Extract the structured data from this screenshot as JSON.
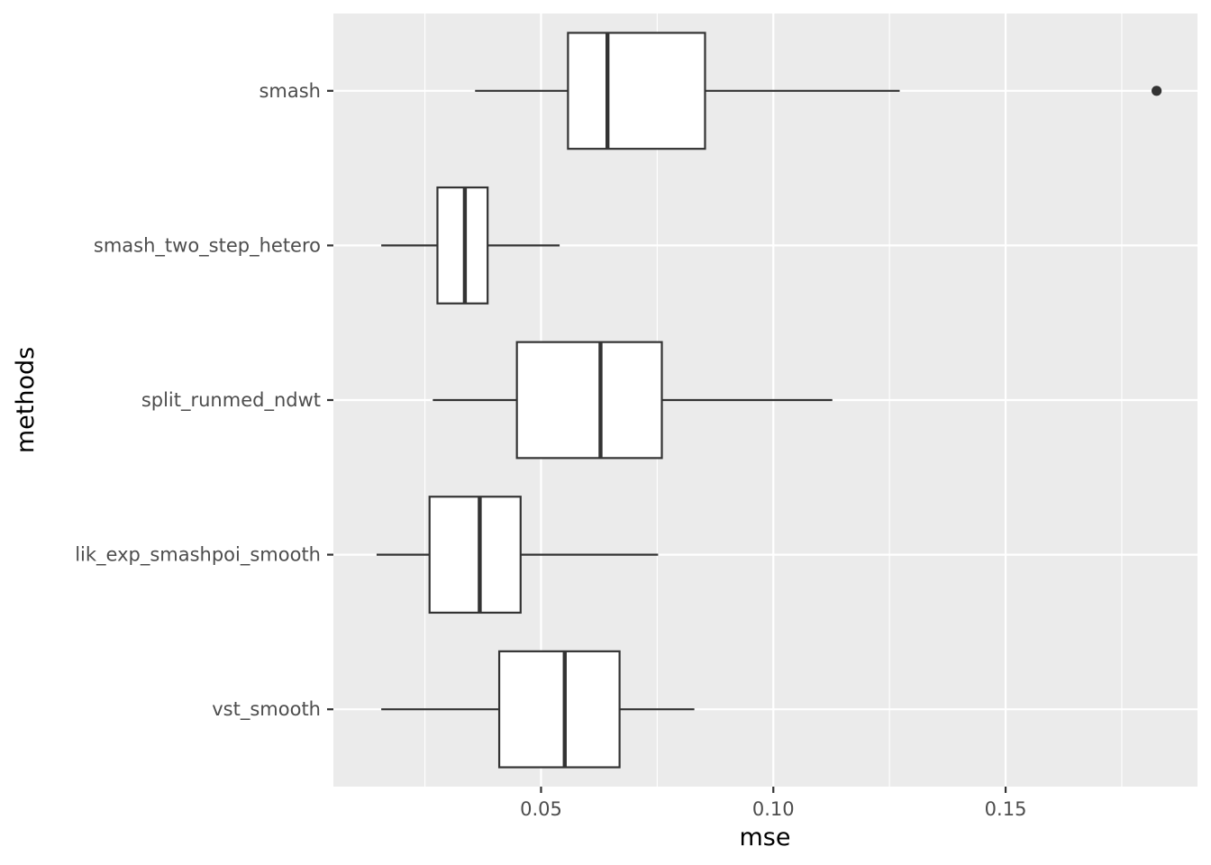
{
  "chart_data": {
    "type": "boxplot",
    "orientation": "horizontal",
    "xlabel": "mse",
    "ylabel": "methods",
    "xlim": [
      0.0053,
      0.1913
    ],
    "xticks": [
      0.05,
      0.1,
      0.15
    ],
    "xtick_labels": [
      "0.05",
      "0.10",
      "0.15"
    ],
    "grid": true,
    "colors": {
      "panel": "#ebebeb",
      "grid_major": "#ffffff",
      "box_fill": "#ffffff",
      "box_stroke": "#333333",
      "tick_text": "#4d4d4d"
    },
    "series": [
      {
        "name": "smash",
        "min": 0.0358,
        "q1": 0.0558,
        "median": 0.0643,
        "q3": 0.0853,
        "max": 0.1272,
        "outliers": [
          0.1825
        ]
      },
      {
        "name": "smash_two_step_hetero",
        "min": 0.0156,
        "q1": 0.0277,
        "median": 0.0336,
        "q3": 0.0385,
        "max": 0.054,
        "outliers": []
      },
      {
        "name": "split_runmed_ndwt",
        "min": 0.0267,
        "q1": 0.0448,
        "median": 0.0628,
        "q3": 0.076,
        "max": 0.1127,
        "outliers": []
      },
      {
        "name": "lik_exp_smashpoi_smooth",
        "min": 0.0146,
        "q1": 0.026,
        "median": 0.0368,
        "q3": 0.0456,
        "max": 0.0752,
        "outliers": []
      },
      {
        "name": "vst_smooth",
        "min": 0.0156,
        "q1": 0.041,
        "median": 0.0551,
        "q3": 0.0669,
        "max": 0.083,
        "outliers": []
      }
    ]
  }
}
